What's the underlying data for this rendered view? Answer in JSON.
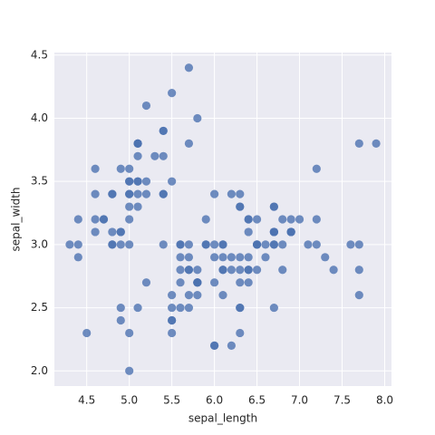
{
  "chart_data": {
    "type": "scatter",
    "xlabel": "sepal_length",
    "ylabel": "sepal_width",
    "color": "#4c72b0",
    "grid": true,
    "xlim": [
      4.12,
      8.08
    ],
    "ylim": [
      1.88,
      4.52
    ],
    "xticks": [
      4.5,
      {
        "value": 5,
        "label": "5.0"
      },
      5.5,
      {
        "value": 6,
        "label": "6.0"
      },
      6.5,
      {
        "value": 7,
        "label": "7.0"
      },
      7.5,
      {
        "value": 8,
        "label": "8.0"
      }
    ],
    "yticks": [
      {
        "value": 2,
        "label": "2.0"
      },
      2.5,
      {
        "value": 3,
        "label": "3.0"
      },
      3.5,
      {
        "value": 4,
        "label": "4.0"
      },
      4.5
    ],
    "x": [
      5.1,
      4.9,
      4.7,
      4.6,
      5.0,
      5.4,
      4.6,
      5.0,
      4.4,
      4.9,
      5.4,
      4.8,
      4.8,
      4.3,
      5.8,
      5.7,
      5.4,
      5.1,
      5.7,
      5.1,
      5.4,
      5.1,
      4.6,
      5.1,
      4.8,
      5.0,
      5.0,
      5.2,
      5.2,
      4.7,
      4.8,
      5.4,
      5.2,
      5.5,
      4.9,
      5.0,
      5.5,
      4.9,
      4.4,
      5.1,
      5.0,
      4.5,
      4.4,
      5.0,
      5.1,
      4.8,
      5.1,
      4.6,
      5.3,
      5.0,
      7.0,
      6.4,
      6.9,
      5.5,
      6.5,
      5.7,
      6.3,
      4.9,
      6.6,
      5.2,
      5.0,
      5.9,
      6.0,
      6.1,
      5.6,
      6.7,
      5.6,
      5.8,
      6.2,
      5.6,
      5.9,
      6.1,
      6.3,
      6.1,
      6.4,
      6.6,
      6.8,
      6.7,
      6.0,
      5.7,
      5.5,
      5.5,
      5.8,
      6.0,
      5.4,
      6.0,
      6.7,
      6.3,
      5.6,
      5.5,
      5.5,
      6.1,
      5.8,
      5.0,
      5.6,
      5.7,
      5.7,
      6.2,
      5.1,
      5.7,
      6.3,
      5.8,
      7.1,
      6.3,
      6.5,
      7.6,
      4.9,
      7.3,
      6.7,
      7.2,
      6.5,
      6.4,
      6.8,
      5.7,
      5.8,
      6.4,
      6.5,
      7.7,
      7.7,
      6.0,
      6.9,
      5.6,
      7.7,
      6.3,
      6.7,
      7.2,
      6.2,
      6.1,
      6.4,
      7.2,
      7.4,
      7.9,
      6.4,
      6.3,
      6.1,
      7.7,
      6.3,
      6.4,
      6.0,
      6.9,
      6.7,
      6.9,
      5.8,
      6.8,
      6.7,
      6.7,
      6.3,
      6.5,
      6.2,
      5.9
    ],
    "y": [
      3.5,
      3.0,
      3.2,
      3.1,
      3.6,
      3.9,
      3.4,
      3.4,
      2.9,
      3.1,
      3.7,
      3.4,
      3.0,
      3.0,
      4.0,
      4.4,
      3.9,
      3.5,
      3.8,
      3.8,
      3.4,
      3.7,
      3.6,
      3.3,
      3.4,
      3.0,
      3.4,
      3.5,
      3.4,
      3.2,
      3.1,
      3.4,
      4.1,
      4.2,
      3.1,
      3.2,
      3.5,
      3.6,
      3.0,
      3.4,
      3.5,
      2.3,
      3.2,
      3.5,
      3.8,
      3.0,
      3.8,
      3.2,
      3.7,
      3.3,
      3.2,
      3.2,
      3.1,
      2.3,
      2.8,
      2.8,
      3.3,
      2.4,
      2.9,
      2.7,
      2.0,
      3.0,
      2.2,
      2.9,
      2.9,
      3.1,
      3.0,
      2.7,
      2.2,
      2.5,
      3.2,
      2.8,
      2.5,
      2.8,
      2.9,
      3.0,
      2.8,
      3.0,
      2.9,
      2.6,
      2.4,
      2.4,
      2.7,
      2.7,
      3.0,
      3.4,
      3.1,
      2.3,
      3.0,
      2.5,
      2.6,
      3.0,
      2.6,
      2.3,
      2.7,
      3.0,
      2.9,
      2.9,
      2.5,
      2.8,
      3.3,
      2.7,
      3.0,
      2.9,
      3.0,
      3.0,
      2.5,
      2.9,
      2.5,
      3.6,
      3.2,
      2.7,
      3.0,
      2.5,
      2.8,
      3.2,
      3.0,
      3.8,
      2.6,
      2.2,
      3.2,
      2.8,
      2.8,
      2.7,
      3.3,
      3.2,
      2.8,
      3.0,
      2.8,
      3.0,
      2.8,
      3.8,
      2.8,
      2.8,
      2.6,
      3.0,
      3.4,
      3.1,
      3.0,
      3.1,
      3.1,
      3.1,
      2.7,
      3.2,
      3.3,
      3.0,
      2.5,
      3.0,
      3.4,
      3.0
    ]
  }
}
